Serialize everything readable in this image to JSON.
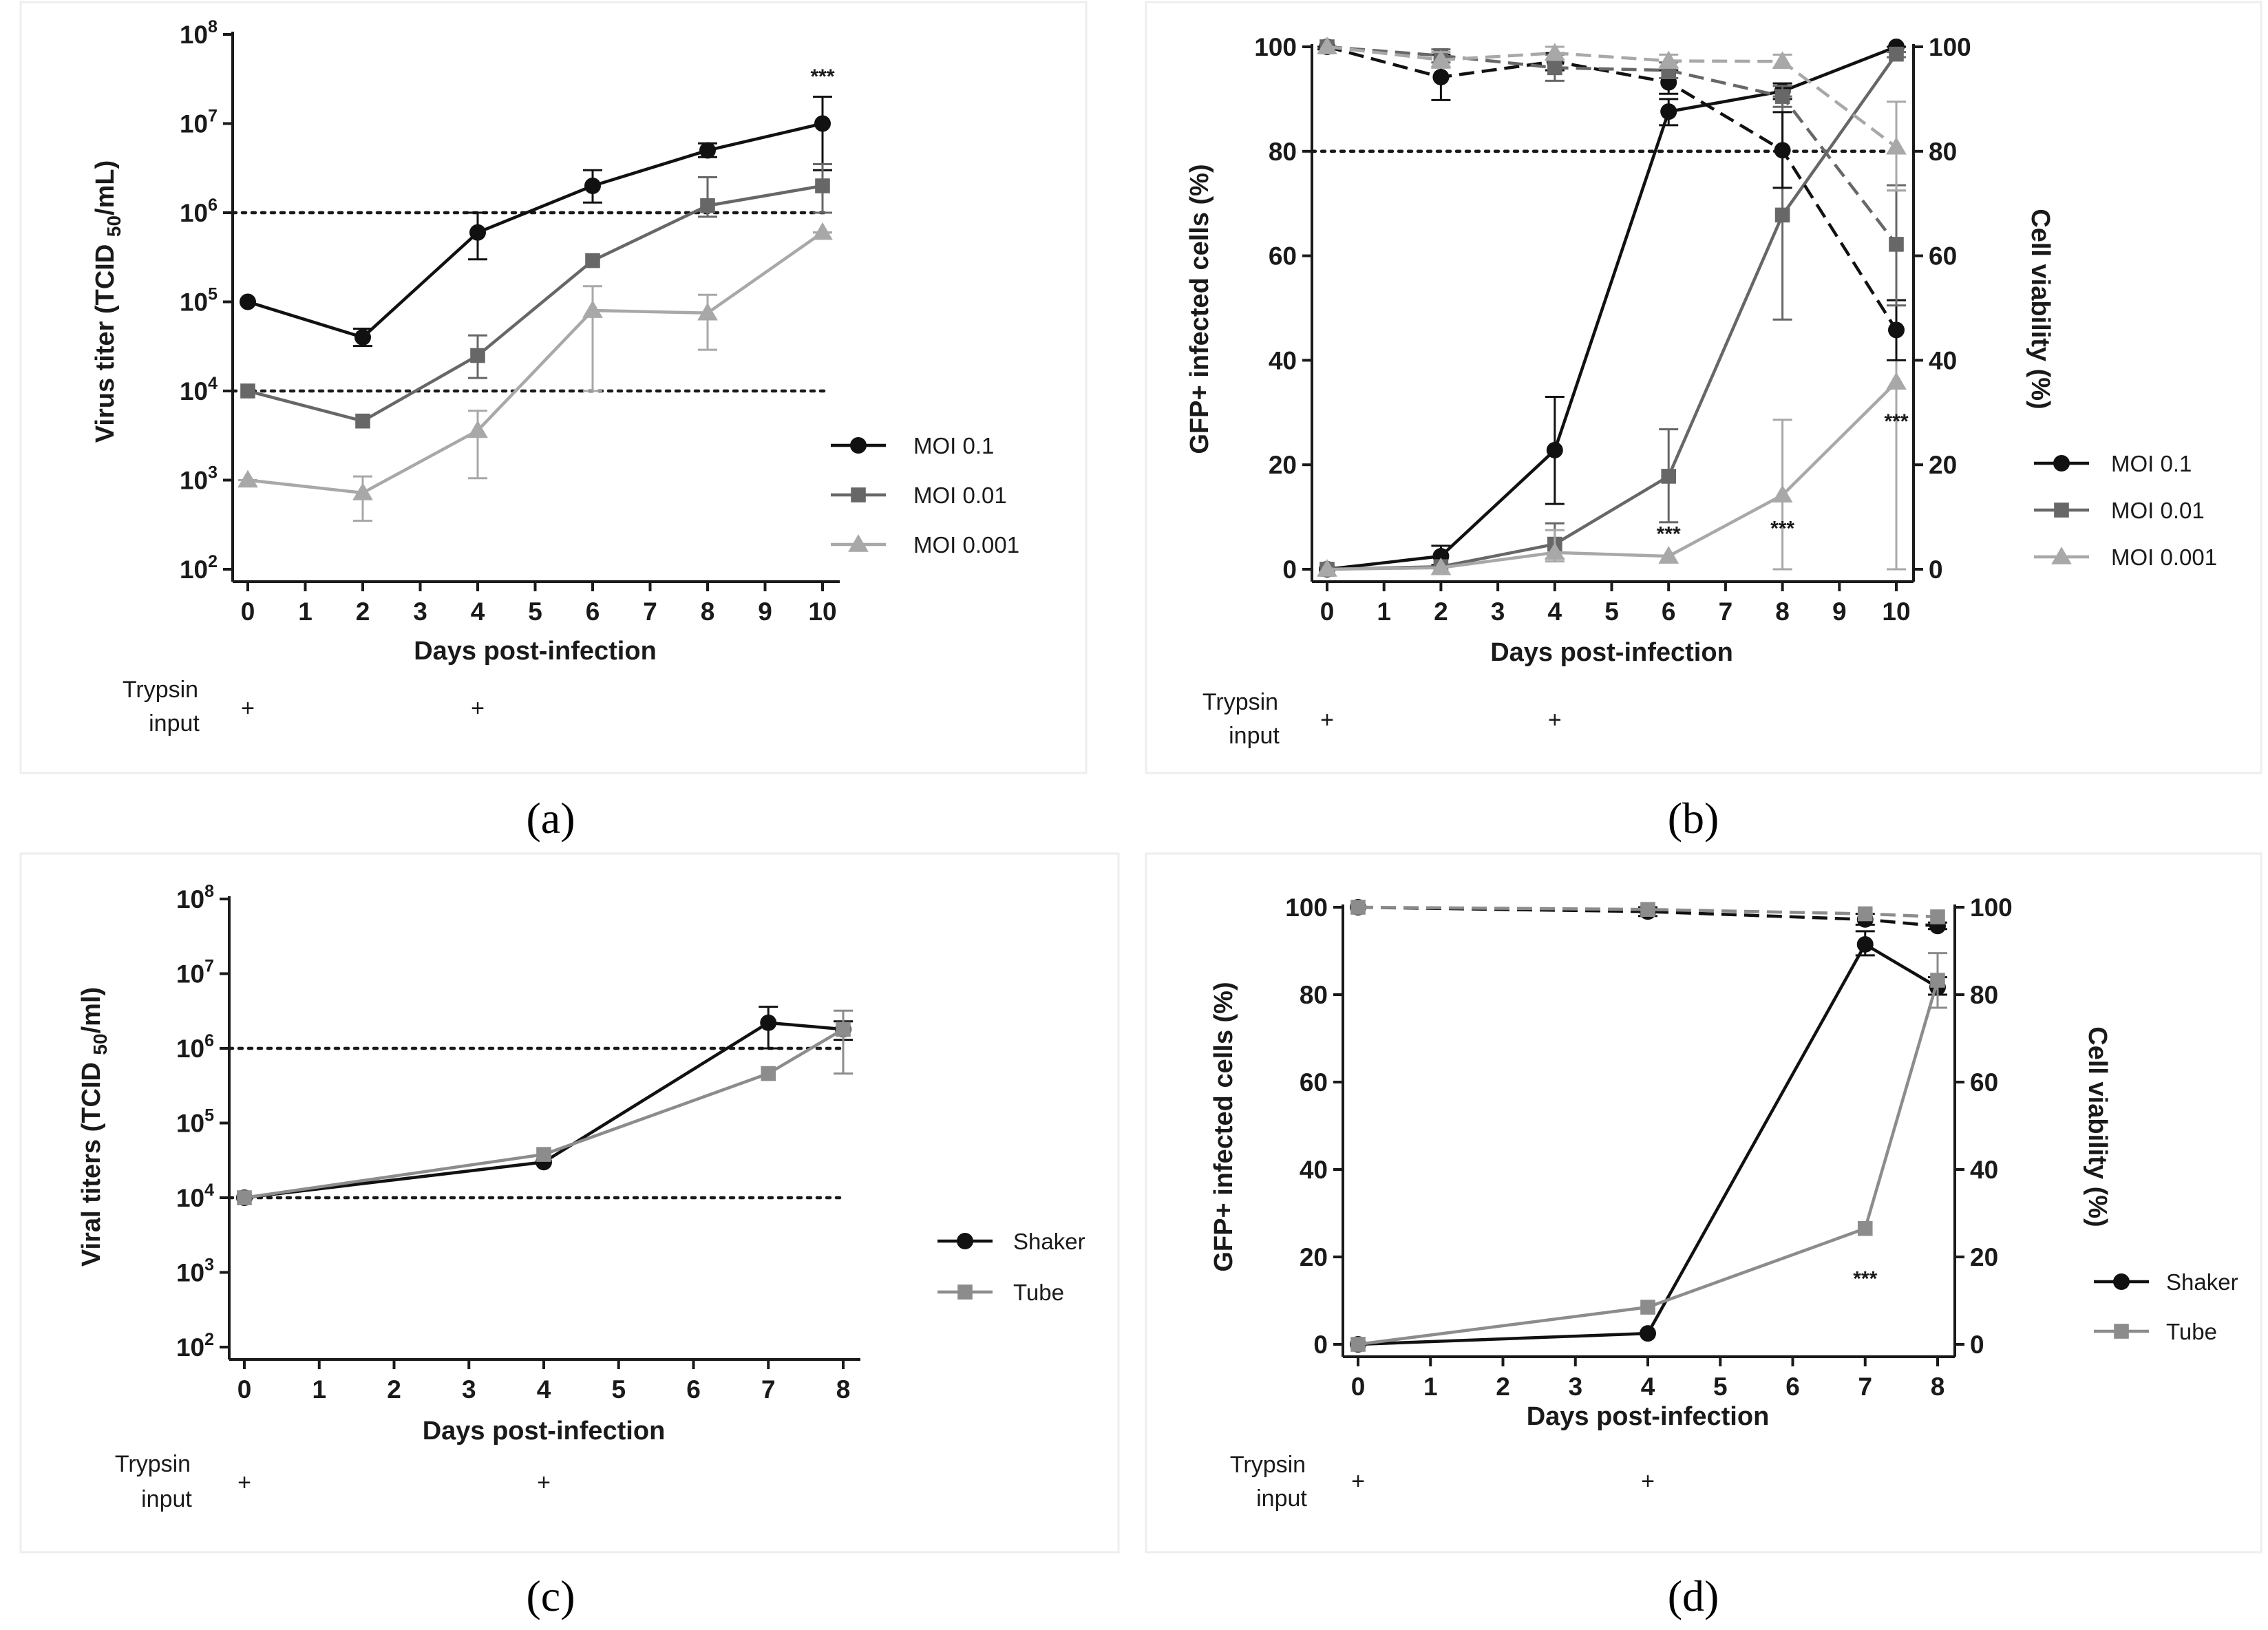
{
  "colors": {
    "black": "#111111",
    "dark_gray": "#676767",
    "light_gray": "#a8a8a8",
    "panel_border": "#eeeeee"
  },
  "trypsin_label_line1": "Trypsin",
  "trypsin_label_line2": "input",
  "trypsin_mark": "+",
  "panel_labels": {
    "a": "(a)",
    "b": "(b)",
    "c": "(c)",
    "d": "(d)"
  },
  "chart_data": [
    {
      "id": "a",
      "type": "line",
      "scale": "log",
      "xlabel": "Days post-infection",
      "ylabel": "Virus titer (TCID 50/mL)",
      "xticks": [
        0,
        1,
        2,
        3,
        4,
        5,
        6,
        7,
        8,
        9,
        10
      ],
      "xlim": [
        0,
        10
      ],
      "ylim": [
        100,
        100000000
      ],
      "ytick_exponents": [
        2,
        3,
        4,
        5,
        6,
        7,
        8
      ],
      "reference_lines": [
        10000,
        1000000
      ],
      "trypsin_days": [
        0,
        4
      ],
      "series": [
        {
          "name": "MOI 0.1",
          "marker": "circle",
          "color": "#111111",
          "x": [
            0,
            2,
            4,
            6,
            8,
            10
          ],
          "y": [
            100000,
            40000,
            600000,
            2000000,
            5000000,
            10000000
          ],
          "err": [
            [
              0,
              0
            ],
            [
              32000,
              50000
            ],
            [
              300000,
              1000000
            ],
            [
              1300000,
              3000000
            ],
            [
              4200000,
              6000000
            ],
            [
              3000000,
              20000000
            ]
          ]
        },
        {
          "name": "MOI 0.01",
          "marker": "square",
          "color": "#676767",
          "x": [
            0,
            2,
            4,
            6,
            8,
            10
          ],
          "y": [
            10000,
            4600,
            25000,
            290000,
            1200000,
            2000000
          ],
          "err": [
            [
              0,
              0
            ],
            [
              0,
              0
            ],
            [
              14000,
              42000
            ],
            [
              0,
              0
            ],
            [
              900000,
              2500000
            ],
            [
              1000000,
              3500000
            ]
          ]
        },
        {
          "name": "MOI 0.001",
          "marker": "triangle",
          "color": "#a8a8a8",
          "x": [
            0,
            2,
            4,
            6,
            8,
            10
          ],
          "y": [
            1000,
            720,
            3600,
            80000,
            75000,
            600000
          ],
          "err": [
            [
              1000,
              1000
            ],
            [
              350,
              1100
            ],
            [
              1050,
              6000
            ],
            [
              10000,
              150000
            ],
            [
              29000,
              120000
            ],
            [
              600000,
              600000
            ]
          ]
        }
      ],
      "annotations": [
        {
          "x": 10,
          "text": "***",
          "y_exp": 7.45
        }
      ]
    },
    {
      "id": "b",
      "type": "line",
      "dual_axis": true,
      "xlabel": "Days post-infection",
      "ylabel": "GFP+ infected cells (%)",
      "ylabel_right": "Cell viability (%)",
      "xticks": [
        0,
        1,
        2,
        3,
        4,
        5,
        6,
        7,
        8,
        9,
        10
      ],
      "xlim": [
        0,
        10
      ],
      "ylim": [
        0,
        100
      ],
      "yticks": [
        0,
        20,
        40,
        60,
        80,
        100
      ],
      "reference_lines": [
        80
      ],
      "trypsin_days": [
        0,
        4
      ],
      "series": [
        {
          "name": "MOI 0.1",
          "marker": "circle",
          "color": "#111111",
          "style": "solid",
          "x": [
            0,
            2,
            4,
            6,
            8,
            10
          ],
          "y": [
            0,
            2.5,
            22.8,
            87.6,
            91.5,
            100
          ],
          "err": [
            [
              0,
              0
            ],
            [
              0.8,
              4.5
            ],
            [
              12.5,
              33
            ],
            [
              85,
              90
            ],
            [
              90,
              93
            ],
            [
              100,
              100
            ]
          ]
        },
        {
          "name": "MOI 0.01",
          "marker": "square",
          "color": "#676767",
          "style": "solid",
          "x": [
            0,
            2,
            4,
            6,
            8,
            10
          ],
          "y": [
            0,
            0.5,
            4.8,
            17.8,
            67.8,
            98.6
          ],
          "err": [
            [
              0,
              0
            ],
            [
              0,
              0
            ],
            [
              2,
              8.8
            ],
            [
              9,
              26.8
            ],
            [
              47.8,
              90.5
            ],
            [
              98,
              99
            ]
          ]
        },
        {
          "name": "MOI 0.001",
          "marker": "triangle",
          "color": "#a8a8a8",
          "style": "solid",
          "x": [
            0,
            2,
            4,
            6,
            8,
            10
          ],
          "y": [
            0,
            0.3,
            3.2,
            2.5,
            14.2,
            35.8
          ],
          "err": [
            [
              0,
              0
            ],
            [
              0,
              0
            ],
            [
              1.5,
              7.5
            ],
            [
              0,
              0
            ],
            [
              0,
              28.6
            ],
            [
              0,
              72.5
            ]
          ]
        },
        {
          "name": "MOI 0.1 viability",
          "marker": "circle",
          "color": "#111111",
          "style": "dashed",
          "x": [
            0,
            2,
            4,
            6,
            8,
            10
          ],
          "y": [
            100,
            94.2,
            97.2,
            93.2,
            80.2,
            45.8
          ],
          "err": [
            [
              99.5,
              100
            ],
            [
              89.8,
              98.5
            ],
            [
              95.5,
              98.8
            ],
            [
              91,
              95.5
            ],
            [
              73,
              87.5
            ],
            [
              40,
              51.5
            ]
          ]
        },
        {
          "name": "MOI 0.01 viability",
          "marker": "square",
          "color": "#676767",
          "style": "dashed",
          "x": [
            0,
            2,
            4,
            6,
            8,
            10
          ],
          "y": [
            100,
            98.3,
            96,
            95.5,
            90.5,
            62.2
          ],
          "err": [
            [
              0,
              0
            ],
            [
              97,
              99.5
            ],
            [
              93.5,
              98.5
            ],
            [
              94,
              97
            ],
            [
              88.5,
              92.5
            ],
            [
              50.5,
              73.5
            ]
          ]
        },
        {
          "name": "MOI 0.001 viability",
          "marker": "triangle",
          "color": "#a8a8a8",
          "style": "dashed",
          "x": [
            0,
            2,
            4,
            6,
            8,
            10
          ],
          "y": [
            100,
            97.5,
            98.8,
            97.3,
            97.2,
            80.8
          ],
          "err": [
            [
              0,
              0
            ],
            [
              96,
              99
            ],
            [
              97.5,
              100
            ],
            [
              96,
              98.5
            ],
            [
              96,
              98.5
            ],
            [
              72.5,
              89.5
            ]
          ]
        }
      ],
      "legend": [
        "MOI 0.1",
        "MOI 0.01",
        "MOI 0.001"
      ],
      "annotations": [
        {
          "x": 6,
          "y": 5.5,
          "text": "***"
        },
        {
          "x": 8,
          "y": 6.5,
          "text": "***"
        },
        {
          "x": 10,
          "y": 27,
          "text": "***"
        }
      ]
    },
    {
      "id": "c",
      "type": "line",
      "scale": "log",
      "xlabel": "Days post-infection",
      "ylabel": "Viral titers (TCID 50/ml)",
      "xticks": [
        0,
        1,
        2,
        3,
        4,
        5,
        6,
        7,
        8
      ],
      "xlim": [
        0,
        8
      ],
      "ylim": [
        100,
        100000000
      ],
      "ytick_exponents": [
        2,
        3,
        4,
        5,
        6,
        7,
        8
      ],
      "reference_lines": [
        10000,
        1000000
      ],
      "trypsin_days": [
        0,
        4
      ],
      "series": [
        {
          "name": "Shaker",
          "marker": "circle",
          "color": "#111111",
          "x": [
            0,
            4,
            7,
            8
          ],
          "y": [
            10000,
            30000,
            2200000,
            1800000
          ],
          "err": [
            [
              0,
              0
            ],
            [
              0,
              0
            ],
            [
              1000000,
              3600000
            ],
            [
              1300000,
              2300000
            ]
          ]
        },
        {
          "name": "Tube",
          "marker": "square",
          "color": "#8c8c8c",
          "x": [
            0,
            4,
            7,
            8
          ],
          "y": [
            10000,
            38000,
            460000,
            1800000
          ],
          "err": [
            [
              0,
              0
            ],
            [
              0,
              0
            ],
            [
              0,
              0
            ],
            [
              460000,
              3200000
            ]
          ]
        }
      ],
      "legend": [
        "Shaker",
        "Tube"
      ]
    },
    {
      "id": "d",
      "type": "line",
      "dual_axis": true,
      "xlabel": "Days post-infection",
      "ylabel": "GFP+ infected cells (%)",
      "ylabel_right": "Cell viability (%)",
      "xticks": [
        0,
        1,
        2,
        3,
        4,
        5,
        6,
        7,
        8
      ],
      "xlim": [
        0,
        8
      ],
      "ylim": [
        0,
        100
      ],
      "yticks": [
        0,
        20,
        40,
        60,
        80,
        100
      ],
      "trypsin_days": [
        0,
        4
      ],
      "series": [
        {
          "name": "Shaker",
          "marker": "circle",
          "color": "#111111",
          "style": "solid",
          "x": [
            0,
            4,
            7,
            8
          ],
          "y": [
            0,
            2.5,
            91.5,
            81.7
          ],
          "err": [
            [
              0,
              0
            ],
            [
              0,
              0
            ],
            [
              89,
              94.5
            ],
            [
              80,
              84
            ]
          ]
        },
        {
          "name": "Tube",
          "marker": "square",
          "color": "#8c8c8c",
          "style": "solid",
          "x": [
            0,
            4,
            7,
            8
          ],
          "y": [
            0,
            8.5,
            26.5,
            83.3
          ],
          "err": [
            [
              0,
              0
            ],
            [
              0,
              0
            ],
            [
              0,
              0
            ],
            [
              77,
              89.5
            ]
          ]
        },
        {
          "name": "Shaker viability",
          "marker": "circle",
          "color": "#111111",
          "style": "dashed",
          "x": [
            0,
            4,
            7,
            8
          ],
          "y": [
            100,
            99,
            97.2,
            95.7
          ],
          "err": [
            [
              0,
              0
            ],
            [
              98,
              100
            ],
            [
              96,
              98.5
            ],
            [
              95,
              96.5
            ]
          ]
        },
        {
          "name": "Tube viability",
          "marker": "square",
          "color": "#8c8c8c",
          "style": "dashed",
          "x": [
            0,
            4,
            7,
            8
          ],
          "y": [
            100,
            99.5,
            98.5,
            97.8
          ],
          "err": [
            [
              0,
              0
            ],
            [
              0,
              0
            ],
            [
              0,
              0
            ],
            [
              0,
              0
            ]
          ]
        }
      ],
      "legend": [
        "Shaker",
        "Tube"
      ],
      "annotations": [
        {
          "x": 7,
          "y": 13.5,
          "text": "***"
        }
      ]
    }
  ]
}
